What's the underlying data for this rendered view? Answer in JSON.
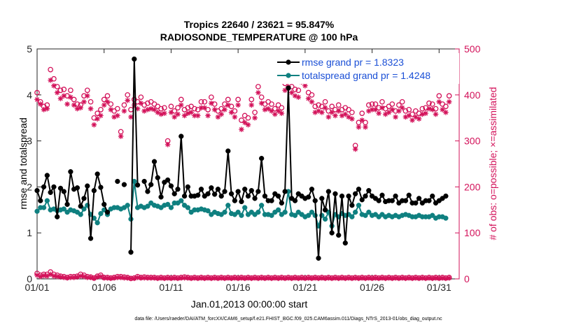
{
  "colors": {
    "rmse": "#000000",
    "spread": "#0f8080",
    "obs": "#d3125a",
    "legend_text": "#1a4fd6"
  },
  "chart_data": {
    "type": "line",
    "title": "Tropics 22640 / 23621 = 95.847%",
    "subtitle": "RADIOSONDE_TEMPERATURE @ 100 hPa",
    "xlabel": "Jan.01,2013 00:00:00 start",
    "ylabel_left": "rmse and totalspread",
    "ylabel_right": "# of obs: o=possible; ×=assimilated",
    "footer": "data file: /Users/raeder/DAI/ATM_forcXX/CAM6_setup/f.e21.FHIST_BGC.f09_025.CAM6assim.011/Diags_NTrS_2013-01/obs_diag_output.nc",
    "x_range": [
      1,
      32.5
    ],
    "ylim_left": [
      0,
      5
    ],
    "ylim_right": [
      0,
      500
    ],
    "x_ticks": [
      {
        "value": 1,
        "label": "01/01"
      },
      {
        "value": 6,
        "label": "01/06"
      },
      {
        "value": 11,
        "label": "01/11"
      },
      {
        "value": 16,
        "label": "01/16"
      },
      {
        "value": 21,
        "label": "01/21"
      },
      {
        "value": 26,
        "label": "01/26"
      },
      {
        "value": 31,
        "label": "01/31"
      }
    ],
    "y_ticks_left": [
      "0",
      "1",
      "2",
      "3",
      "4",
      "5"
    ],
    "y_ticks_right": [
      "0",
      "100",
      "200",
      "300",
      "400",
      "500"
    ],
    "step": 0.25,
    "series": [
      {
        "name": "rmse grand pr = 1.8323",
        "values": [
          1.92,
          1.7,
          2.0,
          2.25,
          1.88,
          2.0,
          1.35,
          1.97,
          1.9,
          1.62,
          2.33,
          1.95,
          1.98,
          1.58,
          1.75,
          2.02,
          0.88,
          1.92,
          2.28,
          1.99,
          1.62,
          1.45,
          null,
          null,
          2.12,
          null,
          2.05,
          null,
          0.58,
          4.78,
          2.04,
          null,
          2.12,
          1.9,
          2.05,
          2.55,
          2.2,
          1.78,
          2.1,
          2.15,
          2.02,
          1.85,
          1.95,
          3.1,
          1.8,
          2.0,
          1.8,
          1.8,
          1.82,
          1.95,
          1.8,
          1.85,
          1.98,
          1.84,
          1.95,
          1.8,
          1.9,
          2.78,
          1.85,
          1.7,
          1.9,
          1.68,
          1.95,
          1.8,
          1.92,
          1.75,
          1.9,
          2.62,
          1.8,
          1.7,
          1.7,
          1.85,
          1.8,
          1.65,
          1.9,
          4.15,
          1.75,
          1.7,
          1.85,
          1.8,
          1.75,
          1.78,
          1.95,
          1.7,
          0.45,
          1.75,
          1.5,
          1.9,
          1.0,
          1.85,
          0.95,
          1.8,
          0.78,
          1.8,
          1.6,
          1.85,
          1.95,
          1.72,
          1.8,
          1.92,
          1.8,
          1.75,
          1.7,
          1.82,
          1.68,
          1.7,
          1.7,
          1.8,
          1.65,
          1.7,
          1.7,
          1.82,
          1.65,
          1.65,
          1.75,
          1.65,
          1.7,
          1.7,
          1.8,
          1.65,
          1.7,
          1.75,
          1.8
        ]
      },
      {
        "name": "totalspread grand pr = 1.4248",
        "values": [
          1.47,
          1.55,
          1.55,
          1.7,
          1.5,
          1.52,
          1.48,
          1.5,
          1.52,
          1.45,
          1.5,
          1.48,
          1.45,
          1.4,
          1.52,
          1.6,
          1.4,
          1.32,
          1.22,
          1.42,
          1.5,
          1.4,
          1.52,
          1.55,
          1.55,
          1.52,
          1.55,
          1.6,
          1.3,
          2.12,
          1.55,
          1.58,
          1.55,
          1.58,
          1.65,
          1.6,
          1.58,
          1.55,
          1.6,
          1.62,
          1.55,
          1.65,
          1.65,
          1.7,
          1.6,
          1.55,
          1.45,
          1.5,
          1.5,
          1.52,
          1.5,
          1.48,
          1.4,
          1.45,
          1.42,
          1.4,
          1.45,
          1.6,
          1.42,
          1.4,
          1.45,
          1.38,
          1.55,
          1.4,
          1.45,
          1.4,
          1.45,
          1.6,
          1.4,
          1.4,
          1.38,
          1.45,
          1.5,
          1.4,
          1.45,
          1.9,
          1.4,
          1.38,
          1.45,
          1.4,
          1.35,
          1.38,
          1.45,
          1.38,
          1.15,
          1.38,
          1.3,
          1.45,
          1.15,
          1.4,
          1.35,
          1.42,
          1.38,
          1.4,
          1.35,
          1.45,
          1.6,
          1.4,
          1.38,
          1.45,
          1.38,
          1.4,
          1.35,
          1.4,
          1.35,
          1.38,
          1.35,
          1.38,
          1.35,
          1.38,
          1.4,
          1.38,
          1.35,
          1.35,
          1.38,
          1.35,
          1.35,
          1.35,
          1.38,
          1.32,
          1.35,
          1.35,
          1.32
        ]
      },
      {
        "name": "obs possible",
        "values": [
          405,
          385,
          375,
          378,
          455,
          435,
          418,
          410,
          412,
          398,
          410,
          390,
          380,
          378,
          398,
          410,
          385,
          350,
          360,
          368,
          390,
          398,
          380,
          365,
          370,
          320,
          378,
          400,
          368,
          390,
          385,
          395,
          378,
          382,
          385,
          380,
          375,
          370,
          372,
          300,
          375,
          365,
          372,
          390,
          368,
          372,
          375,
          370,
          368,
          385,
          385,
          368,
          395,
          380,
          365,
          370,
          380,
          390,
          375,
          365,
          390,
          345,
          355,
          350,
          390,
          362,
          418,
          395,
          380,
          385,
          380,
          370,
          378,
          372,
          425,
          430,
          418,
          412,
          410,
          440,
          435,
          405,
          400,
          375,
          378,
          375,
          385,
          365,
          375,
          368,
          378,
          368,
          372,
          368,
          362,
          290,
          340,
          360,
          340,
          378,
          380,
          380,
          372,
          385,
          370,
          375,
          380,
          365,
          378,
          385,
          365,
          368,
          358,
          365,
          360,
          370,
          372,
          382,
          380,
          370,
          398,
          380,
          375,
          398
        ]
      },
      {
        "name": "obs assimilated",
        "values": [
          390,
          380,
          368,
          370,
          432,
          420,
          405,
          392,
          398,
          380,
          395,
          378,
          370,
          372,
          385,
          398,
          370,
          335,
          348,
          355,
          378,
          385,
          368,
          352,
          355,
          310,
          365,
          388,
          352,
          378,
          370,
          382,
          365,
          368,
          370,
          368,
          362,
          358,
          360,
          292,
          362,
          352,
          358,
          378,
          355,
          360,
          362,
          355,
          355,
          372,
          372,
          355,
          382,
          368,
          352,
          358,
          368,
          378,
          362,
          352,
          378,
          325,
          340,
          335,
          378,
          350,
          405,
          382,
          368,
          370,
          365,
          358,
          365,
          360,
          410,
          418,
          405,
          398,
          395,
          428,
          420,
          392,
          385,
          362,
          365,
          362,
          372,
          352,
          362,
          355,
          365,
          355,
          358,
          352,
          348,
          282,
          330,
          345,
          330,
          365,
          368,
          368,
          360,
          372,
          358,
          362,
          368,
          352,
          365,
          372,
          352,
          355,
          345,
          352,
          348,
          358,
          360,
          370,
          368,
          358,
          385,
          368,
          362,
          385
        ]
      },
      {
        "name": "obs possible low",
        "values": [
          12,
          8,
          10,
          10,
          15,
          10,
          8,
          6,
          5,
          3,
          5,
          5,
          6,
          10,
          8,
          5,
          4,
          2,
          6,
          8,
          3,
          3,
          2,
          3,
          5,
          5,
          4,
          3,
          1,
          2,
          5,
          3,
          4,
          3,
          3,
          3,
          2,
          3,
          2,
          3,
          2,
          3,
          2,
          3,
          4,
          3,
          2,
          3,
          2,
          3,
          2,
          3,
          2,
          3,
          2,
          3,
          2,
          3,
          2,
          3,
          2,
          3,
          2,
          3,
          2,
          3,
          2,
          3,
          2,
          3,
          2,
          3,
          2,
          3,
          2,
          3,
          2,
          3,
          2,
          3,
          2,
          3,
          2,
          3,
          2,
          3,
          2,
          3,
          2,
          3,
          2,
          3,
          2,
          3,
          2,
          3,
          2,
          3,
          2,
          3,
          2,
          3,
          2,
          3,
          2,
          3,
          2,
          3,
          2,
          3,
          2,
          3,
          2,
          3,
          2,
          3,
          2,
          3,
          2,
          3,
          2,
          3,
          2,
          3
        ]
      },
      {
        "name": "obs assimilated low",
        "values": [
          8,
          5,
          7,
          6,
          10,
          6,
          5,
          4,
          3,
          2,
          3,
          3,
          4,
          6,
          5,
          3,
          3,
          1,
          4,
          5,
          2,
          2,
          1,
          2,
          3,
          3,
          2,
          2,
          1,
          1,
          3,
          2,
          2,
          2,
          2,
          2,
          1,
          2,
          1,
          2,
          1,
          2,
          1,
          2,
          2,
          2,
          1,
          2,
          1,
          2,
          1,
          2,
          1,
          2,
          1,
          2,
          1,
          2,
          1,
          2,
          1,
          2,
          1,
          2,
          1,
          2,
          1,
          2,
          1,
          2,
          1,
          2,
          1,
          2,
          1,
          2,
          1,
          2,
          1,
          2,
          1,
          2,
          1,
          2,
          1,
          2,
          1,
          2,
          1,
          2,
          1,
          2,
          1,
          2,
          1,
          2,
          1,
          2,
          1,
          2,
          1,
          2,
          1,
          2,
          1,
          2,
          1,
          2,
          1,
          2,
          1,
          2,
          1,
          2,
          1,
          2,
          1,
          2,
          1,
          2,
          1,
          2,
          1,
          2
        ]
      }
    ],
    "legend": [
      {
        "label": "rmse grand pr = 1.8323",
        "series": 0
      },
      {
        "label": "totalspread grand pr = 1.4248",
        "series": 1
      }
    ],
    "legend_position": "top-right"
  }
}
